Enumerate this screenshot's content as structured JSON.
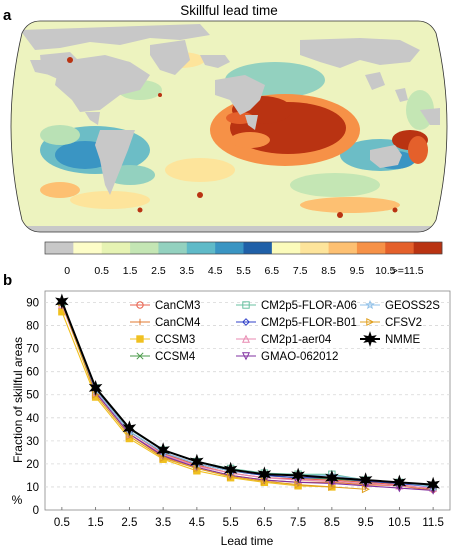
{
  "panel_a": {
    "label": "a",
    "title": "Skillful lead time",
    "colorbar": {
      "colors": [
        "#c8c8c8",
        "#fdfdc8",
        "#e6f3b3",
        "#c4e6b4",
        "#93d1bf",
        "#5fbac8",
        "#3a95c3",
        "#2060a8",
        "#fbfbbb",
        "#fde49b",
        "#fdc072",
        "#f69147",
        "#e4602b",
        "#b93312"
      ],
      "tick_labels": [
        "0",
        "0.5",
        "1.5",
        "2.5",
        "3.5",
        "4.5",
        "5.5",
        "6.5",
        "7.5",
        "8.5",
        "9.5",
        "10.5",
        ">=11.5"
      ]
    }
  },
  "panel_b": {
    "label": "b",
    "axis_unit": "%"
  },
  "chart_data": {
    "type": "line",
    "xlabel": "Lead time",
    "ylabel": "Fraction of skillful areas",
    "x": [
      0.5,
      1.5,
      2.5,
      3.5,
      4.5,
      5.5,
      6.5,
      7.5,
      8.5,
      9.5,
      10.5,
      11.5
    ],
    "xticks": [
      "0.5",
      "1.5",
      "2.5",
      "3.5",
      "4.5",
      "5.5",
      "6.5",
      "7.5",
      "8.5",
      "9.5",
      "10.5",
      "11.5"
    ],
    "yticks": [
      0,
      10,
      20,
      30,
      40,
      50,
      60,
      70,
      80,
      90
    ],
    "ylim": [
      0,
      95
    ],
    "grid": true,
    "legend_placement": "top-right",
    "series": [
      {
        "name": "CanCM3",
        "color": "#e8604c",
        "marker": "circle",
        "values": [
          90,
          52,
          34,
          24.5,
          19.5,
          16,
          14,
          13.5,
          13,
          12,
          11,
          9
        ]
      },
      {
        "name": "CanCM4",
        "color": "#e07a30",
        "marker": "plus",
        "values": [
          90,
          51,
          33,
          23,
          18.5,
          15,
          13,
          12,
          12,
          11,
          10.5,
          8.5
        ]
      },
      {
        "name": "CCSM3",
        "color": "#f0c020",
        "marker": "square",
        "values": [
          86,
          49,
          31,
          22,
          17,
          14,
          12,
          10.5,
          10,
          null,
          null,
          null
        ]
      },
      {
        "name": "CCSM4",
        "color": "#4a9a4a",
        "marker": "x",
        "values": [
          90,
          52,
          34,
          25,
          20,
          17,
          15,
          14,
          13.5,
          12.5,
          11.5,
          10.5
        ]
      },
      {
        "name": "CM2p5-FLOR-A06",
        "color": "#68c0a0",
        "marker": "square",
        "values": [
          90,
          53,
          35,
          26,
          21,
          18,
          16,
          15.5,
          15.5,
          13,
          12,
          10
        ]
      },
      {
        "name": "CM2p5-FLOR-B01",
        "color": "#3040c8",
        "marker": "diamond",
        "values": [
          90,
          52,
          34,
          25,
          20,
          17,
          15,
          14,
          14,
          12.5,
          11.5,
          10
        ]
      },
      {
        "name": "CM2p1-aer04",
        "color": "#e888b0",
        "marker": "triangle-up",
        "values": [
          89,
          51,
          33,
          24,
          19,
          16,
          14,
          13,
          12.5,
          11.5,
          10.5,
          9.5
        ]
      },
      {
        "name": "GMAO-062012",
        "color": "#8030a0",
        "marker": "triangle-down",
        "values": [
          90,
          51,
          33,
          23.5,
          18.5,
          15,
          13,
          12,
          11.5,
          10.5,
          9.5,
          8.5
        ]
      },
      {
        "name": "GEOSS2S",
        "color": "#90c0e8",
        "marker": "star",
        "values": [
          90,
          52,
          34,
          25,
          20,
          17,
          15.5,
          15,
          15,
          13,
          12,
          10
        ]
      },
      {
        "name": "CFSV2",
        "color": "#e0a020",
        "marker": "triangle-right",
        "values": [
          90,
          50,
          32,
          22.5,
          18,
          14.5,
          12.5,
          11,
          10,
          9,
          null,
          null
        ]
      },
      {
        "name": "NMME",
        "color": "#000000",
        "marker": "hexagram",
        "values": [
          90.5,
          53,
          35.5,
          26,
          21,
          17.5,
          15.5,
          15,
          14,
          13,
          12,
          11
        ]
      }
    ]
  }
}
